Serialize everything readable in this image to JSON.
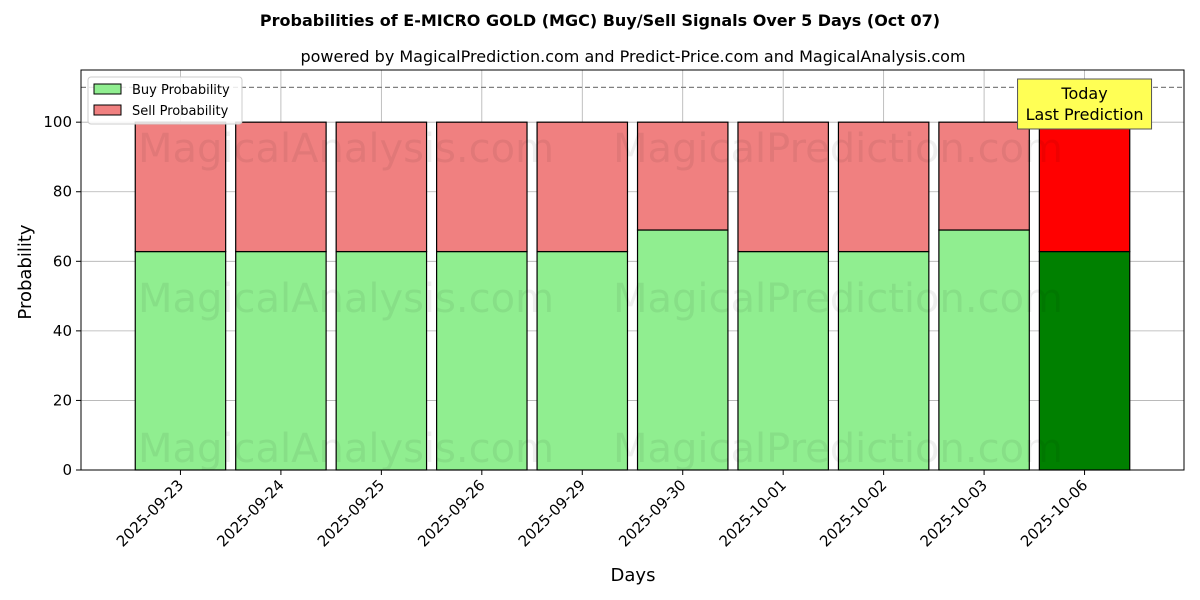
{
  "chart_data": {
    "type": "bar",
    "stacked": true,
    "title": "Probabilities of E-MICRO GOLD (MGC) Buy/Sell Signals Over 5 Days (Oct 07)",
    "subtitle": "powered by MagicalPrediction.com and Predict-Price.com and MagicalAnalysis.com",
    "xlabel": "Days",
    "ylabel": "Probability",
    "ylim": [
      0,
      115
    ],
    "yticks": [
      0,
      20,
      40,
      60,
      80,
      100
    ],
    "grid": true,
    "legend_position": "top-left",
    "categories": [
      "2025-09-23",
      "2025-09-24",
      "2025-09-25",
      "2025-09-26",
      "2025-09-29",
      "2025-09-30",
      "2025-10-01",
      "2025-10-02",
      "2025-10-03",
      "2025-10-06"
    ],
    "series": [
      {
        "name": "Buy Probability",
        "values": [
          62.8,
          62.8,
          62.8,
          62.8,
          62.8,
          69.0,
          62.8,
          62.8,
          69.0,
          62.8
        ],
        "color": "#90ee90",
        "highlight_color": "#008000"
      },
      {
        "name": "Sell Probability",
        "values": [
          37.2,
          37.2,
          37.2,
          37.2,
          37.2,
          31.0,
          37.2,
          37.2,
          31.0,
          37.2
        ],
        "color": "#f08080",
        "highlight_color": "#ff0000"
      }
    ],
    "highlight_index": 9,
    "reference_line": {
      "y": 110,
      "style": "dashed",
      "color": "#808080"
    },
    "annotation": {
      "lines": [
        "Today",
        "Last Prediction"
      ],
      "background": "#ffff55"
    },
    "watermarks": [
      "MagicalAnalysis.com",
      "MagicalPrediction.com"
    ]
  }
}
